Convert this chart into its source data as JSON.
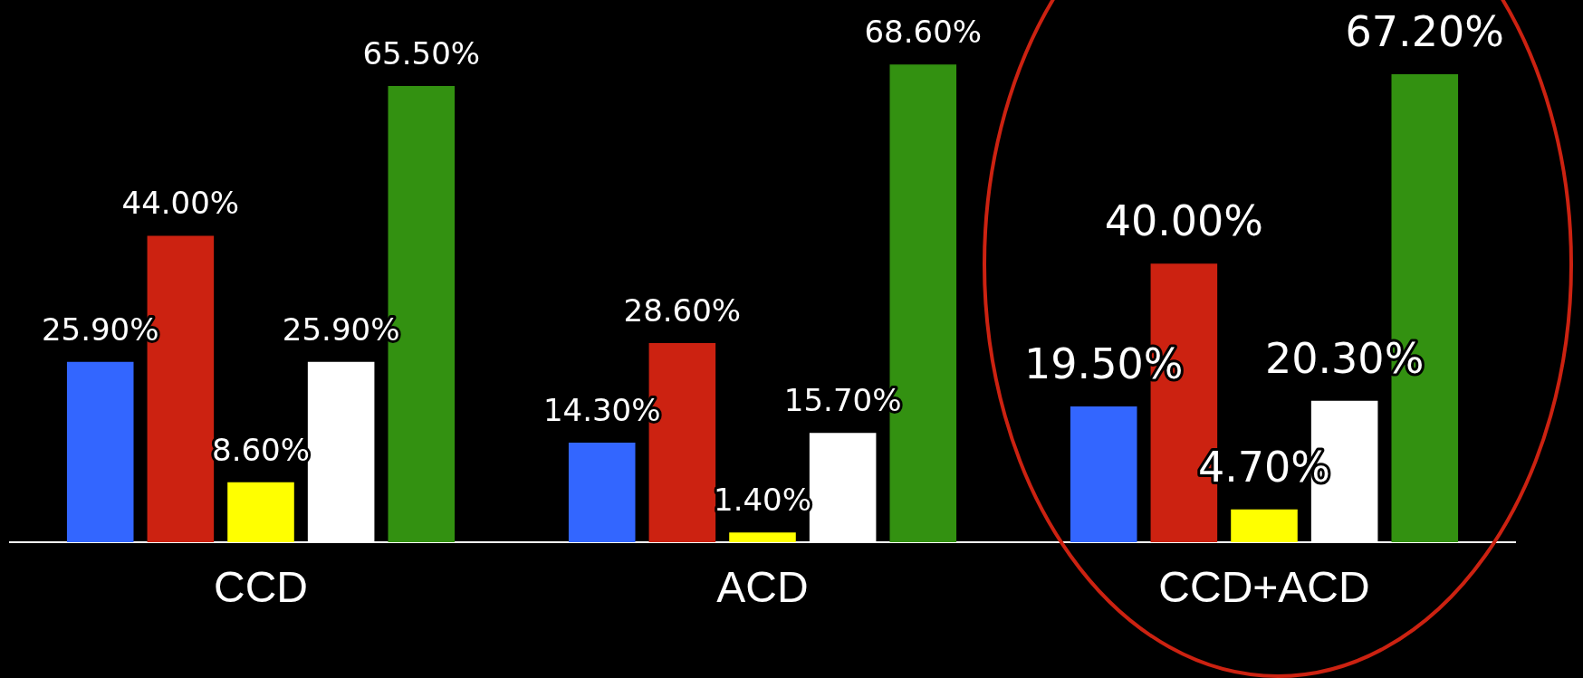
{
  "chart_data": {
    "type": "bar",
    "categories": [
      "CCD",
      "ACD",
      "CCD+ACD"
    ],
    "series": [
      {
        "color": "#3366ff",
        "values": [
          25.9,
          14.3,
          19.5
        ],
        "value_labels": [
          "25.90%",
          "14.30%",
          "19.50%"
        ]
      },
      {
        "color": "#cc2211",
        "values": [
          44.0,
          28.6,
          40.0
        ],
        "value_labels": [
          "44.00%",
          "28.60%",
          "40.00%"
        ]
      },
      {
        "color": "#ffff00",
        "values": [
          8.6,
          1.4,
          4.7
        ],
        "value_labels": [
          "8.60%",
          "1.40%",
          "4.70%"
        ]
      },
      {
        "color": "#ffffff",
        "values": [
          25.9,
          15.7,
          20.3
        ],
        "value_labels": [
          "25.90%",
          "15.70%",
          "20.30%"
        ]
      },
      {
        "color": "#339111",
        "values": [
          65.5,
          68.6,
          67.2
        ],
        "value_labels": [
          "65.50%",
          "68.60%",
          "67.20%"
        ]
      }
    ],
    "legend": false
  }
}
